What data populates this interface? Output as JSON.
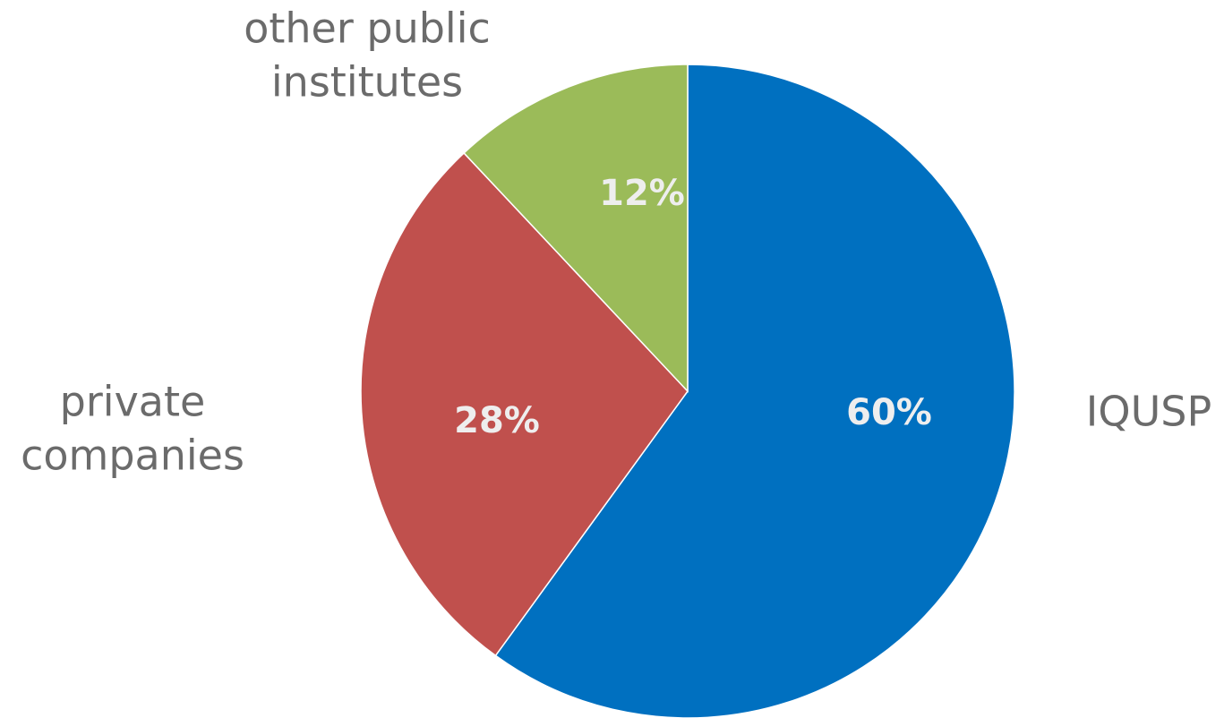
{
  "chart_data": {
    "type": "pie",
    "start_angle_deg": 0,
    "direction": "clockwise",
    "slices": [
      {
        "label_lines": [
          "IQUSP"
        ],
        "value": 60,
        "data_label": "60%",
        "color": "#0070C0"
      },
      {
        "label_lines": [
          "private",
          "companies"
        ],
        "value": 28,
        "data_label": "28%",
        "color": "#C0504D"
      },
      {
        "label_lines": [
          "other public",
          "institutes"
        ],
        "value": 12,
        "data_label": "12%",
        "color": "#9BBB59"
      }
    ]
  }
}
